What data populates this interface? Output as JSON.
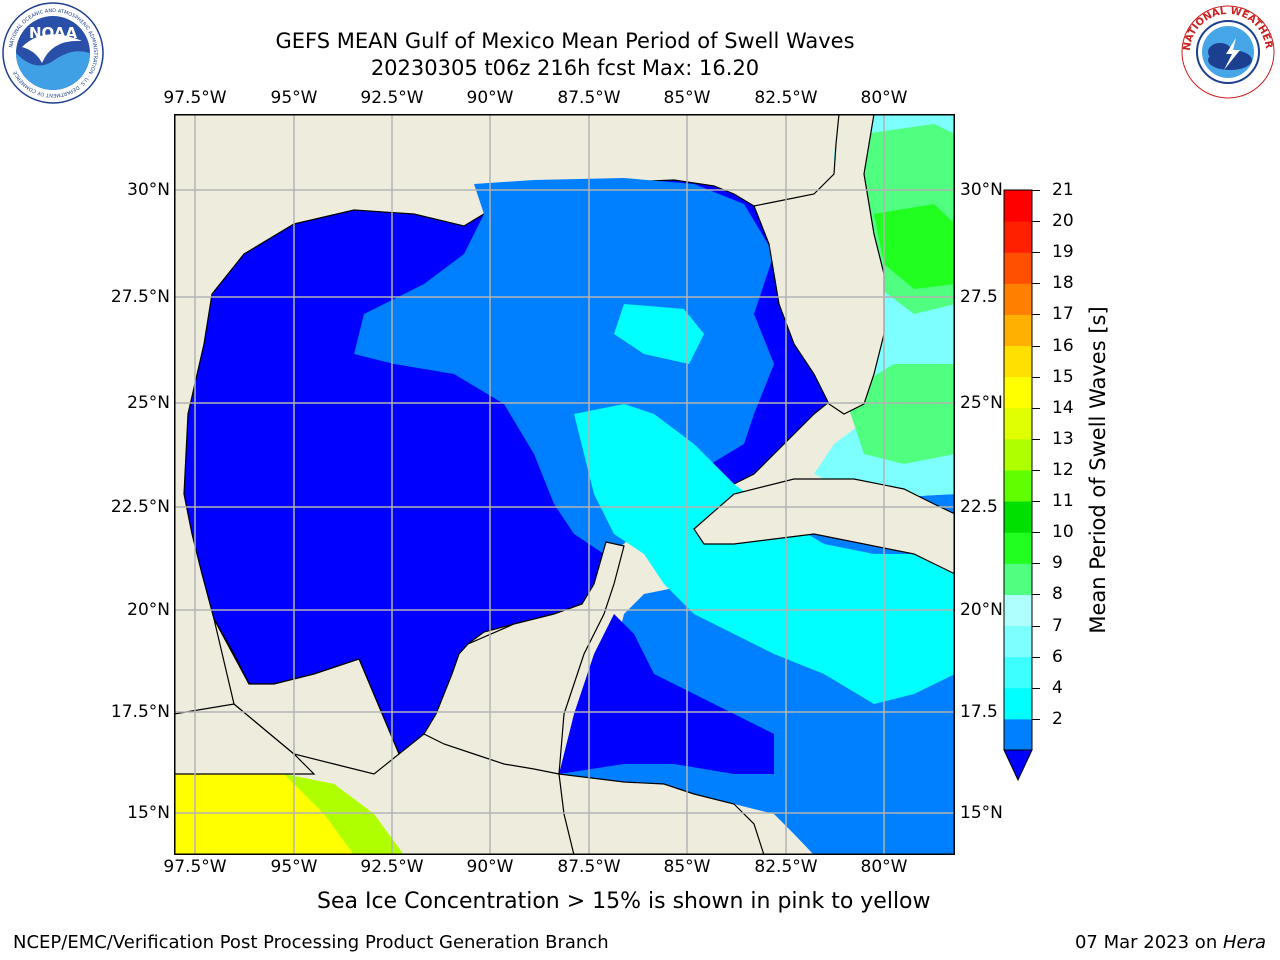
{
  "header": {
    "title_line1": "GEFS MEAN Gulf of Mexico Mean Period of Swell Waves",
    "title_line2": "20230305 t06z 216h fcst   Max: 16.20"
  },
  "logos": {
    "left": {
      "name": "NOAA",
      "ring_text": "NATIONAL OCEANIC AND ATMOSPHERIC ADMINISTRATION · U.S. DEPARTMENT OF COMMERCE"
    },
    "right": {
      "name": "NATIONAL WEATHER SERVICE"
    }
  },
  "map": {
    "lon_ticks": [
      "97.5°W",
      "95°W",
      "92.5°W",
      "90°W",
      "87.5°W",
      "85°W",
      "82.5°W",
      "80°W"
    ],
    "lat_ticks_left": [
      "30°N",
      "27.5°N",
      "25°N",
      "22.5°N",
      "20°N",
      "17.5°N",
      "15°N"
    ],
    "lat_ticks_right": [
      "30°N",
      "27.5",
      "25°N",
      "22.5",
      "20°N",
      "17.5",
      "15°N"
    ],
    "colors": {
      "land": "#eeecdc",
      "coast": "#000000",
      "grid": "#b3b3b3"
    }
  },
  "colorbar": {
    "title": "Mean Period of Swell Waves [s]",
    "ticks": [
      "21",
      "20",
      "19",
      "18",
      "17",
      "16",
      "15",
      "14",
      "13",
      "12",
      "11",
      "10",
      "9",
      "8",
      "7",
      "6",
      "4",
      "2"
    ],
    "colors_bottom_to_top": [
      "#0000ff",
      "#0080ff",
      "#00ffff",
      "#3dffff",
      "#7dffff",
      "#b0ffff",
      "#50ff80",
      "#20ff20",
      "#00e000",
      "#60ff00",
      "#b0ff00",
      "#e0ff00",
      "#ffff00",
      "#ffe000",
      "#ffb000",
      "#ff8000",
      "#ff5000",
      "#ff2000",
      "#ff0000"
    ]
  },
  "footer": {
    "note": "Sea Ice Concentration > 15% is shown in pink to yellow",
    "left": "NCEP/EMC/Verification Post Processing Product Generation Branch",
    "right_date": "07 Mar 2023 on ",
    "right_host": "Hera"
  }
}
